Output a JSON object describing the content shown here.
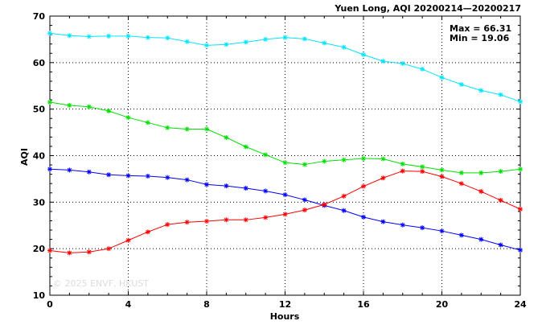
{
  "chart_data": {
    "type": "line",
    "title": "Yuen Long, AQI 20200214—20200217",
    "xlabel": "Hours",
    "ylabel": "AQI",
    "xlim": [
      0,
      24
    ],
    "ylim": [
      10,
      70
    ],
    "x_ticks": [
      0,
      4,
      8,
      12,
      16,
      20,
      24
    ],
    "y_ticks": [
      10,
      20,
      30,
      40,
      50,
      60,
      70
    ],
    "grid": true,
    "annotations": {
      "max": "Max = 66.31",
      "min": "Min = 19.06"
    },
    "watermark": "© 2025  ENVF, HKUST",
    "x": [
      0,
      1,
      2,
      3,
      4,
      5,
      6,
      7,
      8,
      9,
      10,
      11,
      12,
      13,
      14,
      15,
      16,
      17,
      18,
      19,
      20,
      21,
      22,
      23,
      24
    ],
    "series": [
      {
        "color": "#00e5ff",
        "values": [
          66.3,
          65.8,
          65.6,
          65.7,
          65.7,
          65.4,
          65.3,
          64.5,
          63.7,
          63.9,
          64.4,
          65.0,
          65.4,
          65.1,
          64.2,
          63.3,
          61.7,
          60.3,
          59.8,
          58.6,
          56.8,
          55.3,
          54.0,
          53.1,
          51.6
        ]
      },
      {
        "color": "#00e000",
        "values": [
          51.5,
          50.8,
          50.5,
          49.6,
          48.2,
          47.1,
          46.0,
          45.7,
          45.7,
          43.9,
          41.9,
          40.2,
          38.5,
          38.1,
          38.8,
          39.1,
          39.4,
          39.3,
          38.2,
          37.6,
          36.9,
          36.3,
          36.3,
          36.6,
          37.1
        ]
      },
      {
        "color": "#0000ff",
        "values": [
          37.1,
          36.9,
          36.5,
          35.9,
          35.7,
          35.6,
          35.3,
          34.8,
          33.8,
          33.5,
          33.0,
          32.4,
          31.6,
          30.5,
          29.3,
          28.2,
          26.8,
          25.8,
          25.1,
          24.5,
          23.8,
          22.9,
          22.0,
          20.8,
          19.7
        ]
      },
      {
        "color": "#ff0000",
        "values": [
          19.6,
          19.1,
          19.3,
          20.0,
          21.8,
          23.6,
          25.2,
          25.7,
          25.9,
          26.2,
          26.2,
          26.7,
          27.4,
          28.3,
          29.5,
          31.3,
          33.4,
          35.2,
          36.7,
          36.6,
          35.5,
          34.0,
          32.3,
          30.4,
          28.5
        ]
      }
    ]
  }
}
